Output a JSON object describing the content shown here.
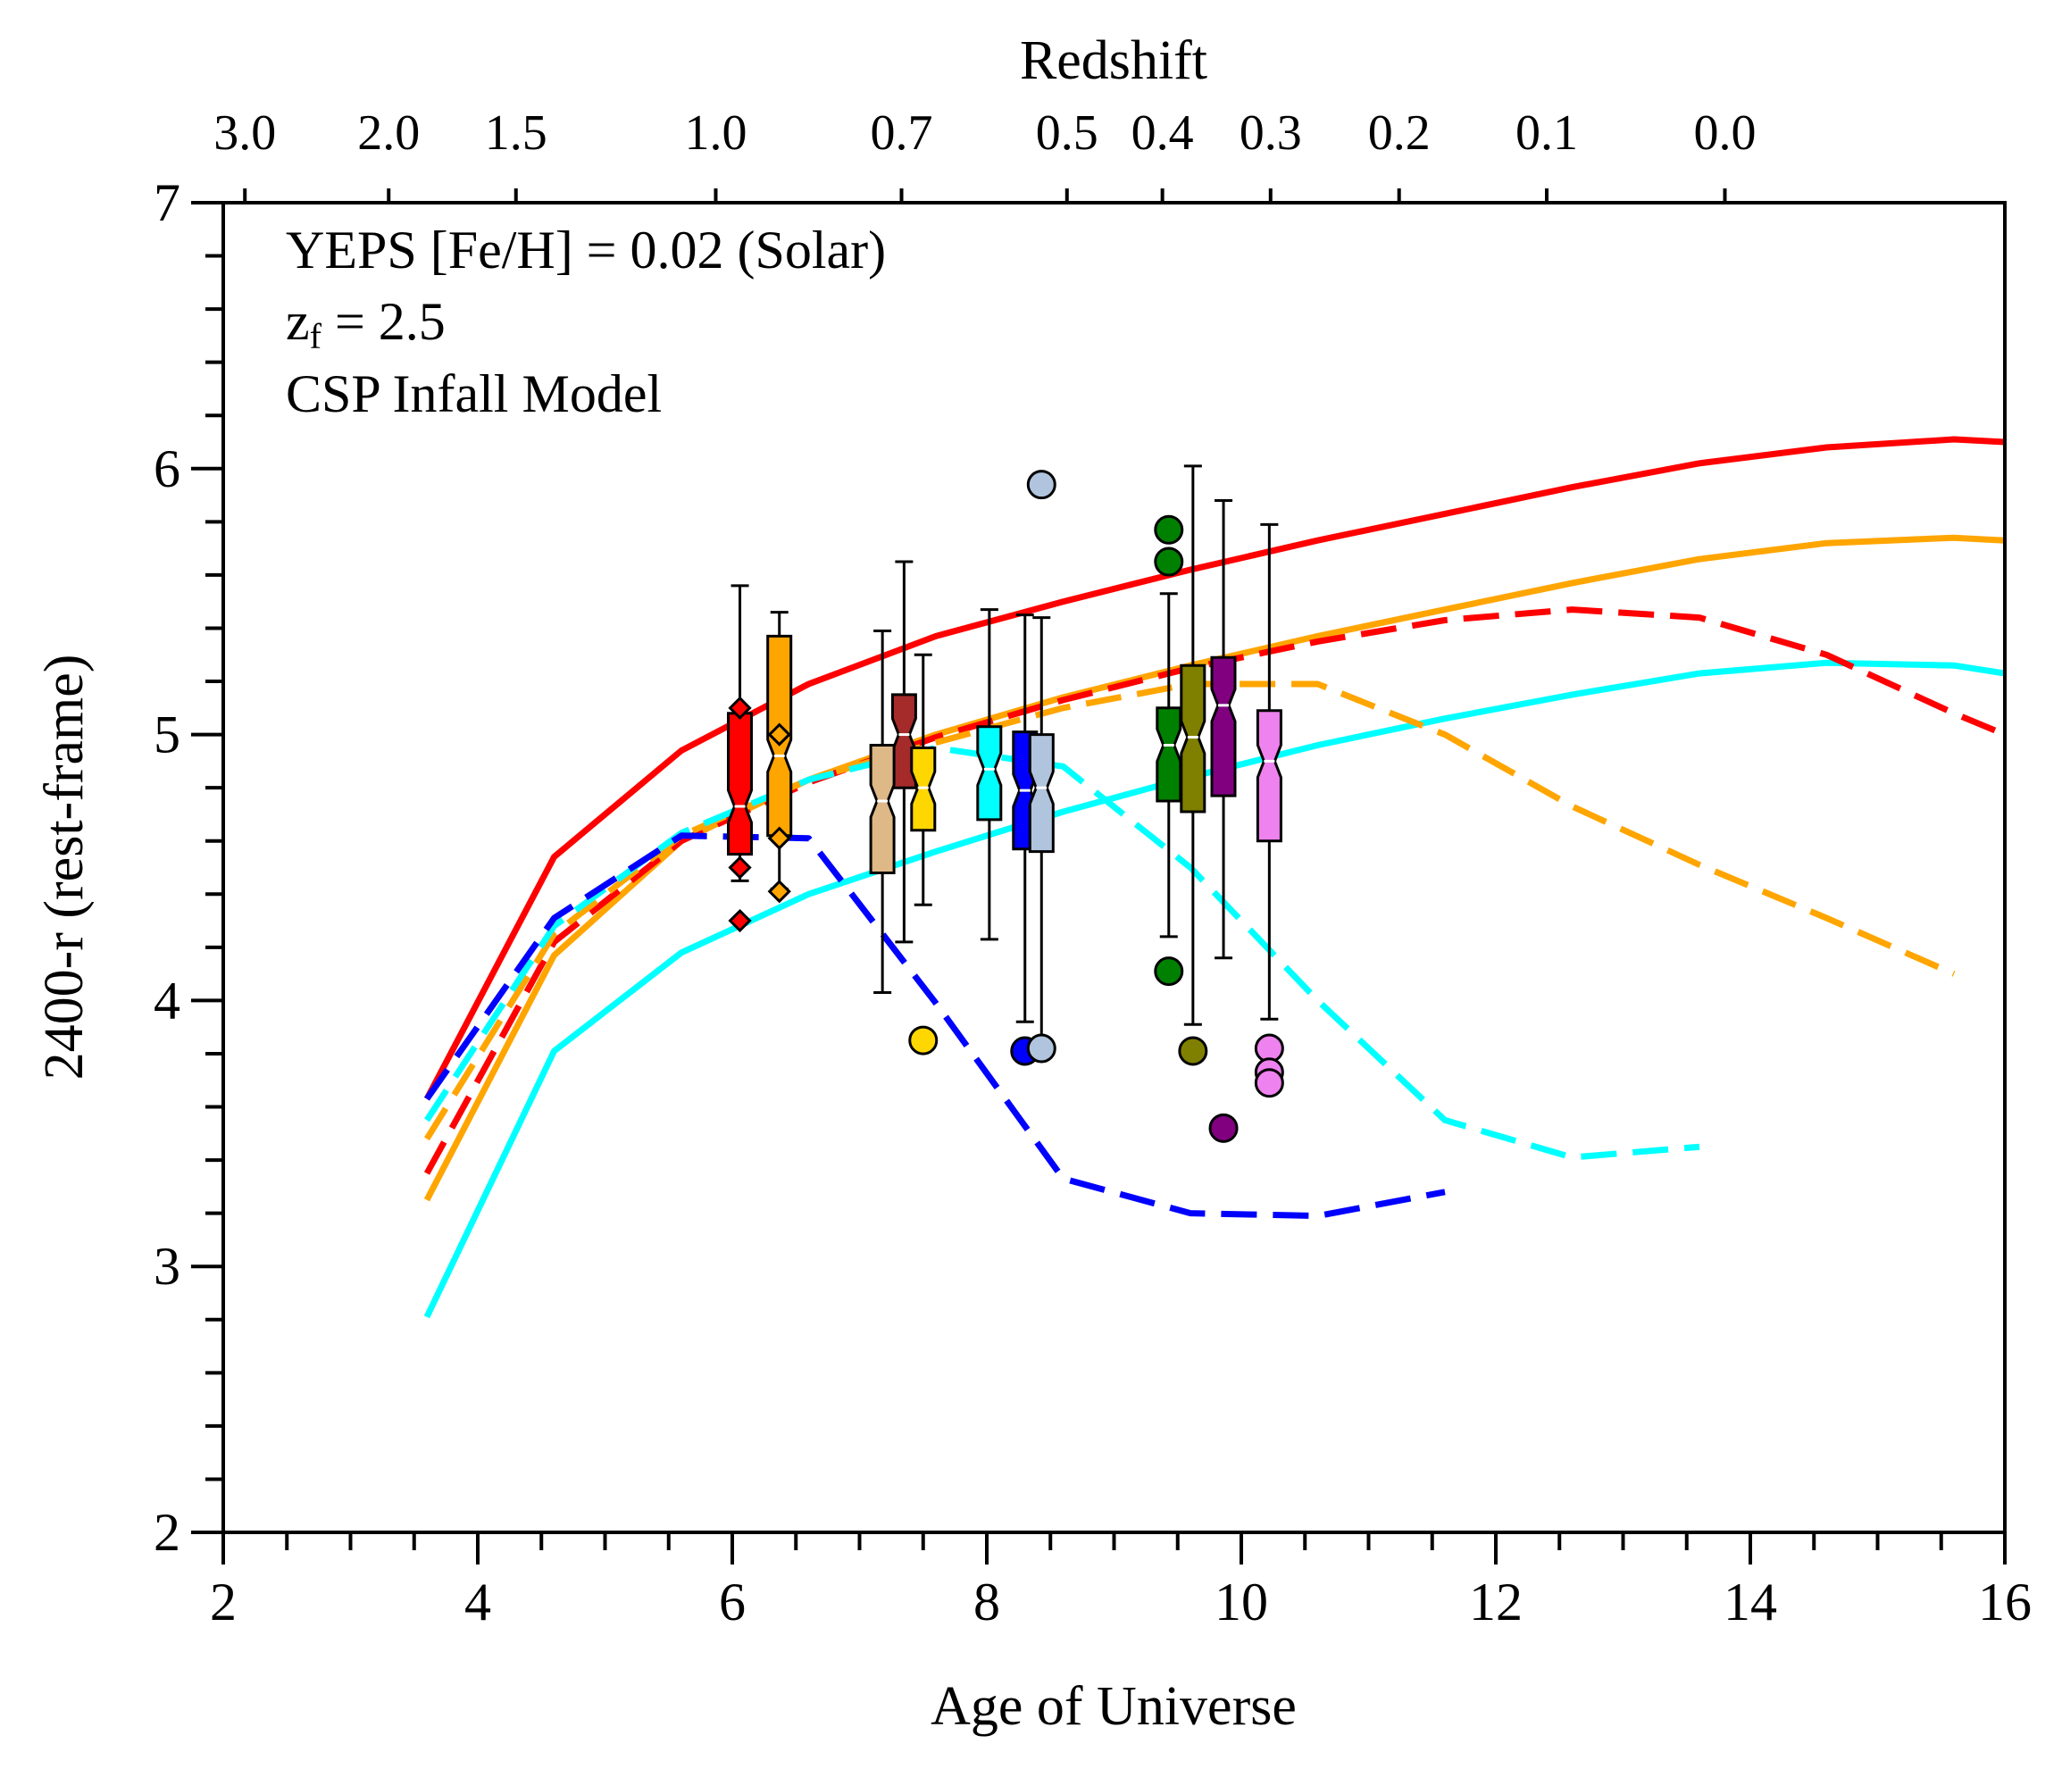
{
  "chart_data": {
    "type": "line",
    "title": "",
    "xlabel": "Age of Universe",
    "ylabel": "2400-r (rest-frame)",
    "top_axis_label": "Redshift",
    "xlim": [
      2,
      16
    ],
    "ylim": [
      2,
      7
    ],
    "x_ticks": [
      2,
      4,
      6,
      8,
      10,
      12,
      14,
      16
    ],
    "y_ticks": [
      2,
      3,
      4,
      5,
      6,
      7
    ],
    "x_tick_labels": [
      "2",
      "4",
      "6",
      "8",
      "10",
      "12",
      "14",
      "16"
    ],
    "y_tick_labels": [
      "2",
      "3",
      "4",
      "5",
      "6",
      "7"
    ],
    "top_ticks": [
      {
        "label": "3.0",
        "age": 2.17
      },
      {
        "label": "2.0",
        "age": 3.3
      },
      {
        "label": "1.5",
        "age": 4.3
      },
      {
        "label": "1.0",
        "age": 5.87
      },
      {
        "label": "0.7",
        "age": 7.33
      },
      {
        "label": "0.5",
        "age": 8.63
      },
      {
        "label": "0.4",
        "age": 9.38
      },
      {
        "label": "0.3",
        "age": 10.23
      },
      {
        "label": "0.2",
        "age": 11.24
      },
      {
        "label": "0.1",
        "age": 12.4
      },
      {
        "label": "0.0",
        "age": 13.8
      }
    ],
    "annotations": {
      "line1": "YEPS [Fe/H] = 0.02 (Solar)",
      "line2_base": "z",
      "line2_sub": "f",
      "line2_rest": " = 2.5",
      "line3": "CSP Infall Model"
    },
    "series": [
      {
        "name": "red-solid",
        "color": "#ff0000",
        "dash": "solid",
        "x": [
          3.6,
          4.6,
          5.6,
          6.6,
          7.6,
          8.6,
          9.6,
          10.6,
          11.6,
          12.6,
          13.6,
          14.6,
          15.6,
          16.0
        ],
        "y": [
          3.63,
          4.54,
          4.94,
          5.19,
          5.37,
          5.5,
          5.62,
          5.73,
          5.83,
          5.93,
          6.02,
          6.08,
          6.11,
          6.1
        ]
      },
      {
        "name": "orange-solid",
        "color": "#ffa500",
        "dash": "solid",
        "x": [
          3.6,
          4.6,
          5.6,
          6.6,
          7.6,
          8.6,
          9.6,
          10.6,
          11.6,
          12.6,
          13.6,
          14.6,
          15.6,
          16.0
        ],
        "y": [
          3.25,
          4.17,
          4.6,
          4.83,
          5.0,
          5.14,
          5.26,
          5.37,
          5.47,
          5.57,
          5.66,
          5.72,
          5.74,
          5.73
        ]
      },
      {
        "name": "cyan-solid",
        "color": "#00ffff",
        "dash": "solid",
        "x": [
          3.6,
          4.6,
          5.6,
          6.6,
          7.6,
          8.6,
          9.6,
          10.6,
          11.6,
          12.6,
          13.6,
          14.6,
          15.6,
          16.0
        ],
        "y": [
          2.81,
          3.81,
          4.18,
          4.4,
          4.56,
          4.71,
          4.84,
          4.96,
          5.06,
          5.15,
          5.23,
          5.27,
          5.26,
          5.23
        ]
      },
      {
        "name": "red-dashed",
        "color": "#ff0000",
        "dash": "dashed",
        "x": [
          3.6,
          4.6,
          5.6,
          6.6,
          7.6,
          8.6,
          9.6,
          10.6,
          11.6,
          12.6,
          13.6,
          14.6,
          15.6,
          16.0
        ],
        "y": [
          3.35,
          4.22,
          4.6,
          4.82,
          4.99,
          5.13,
          5.25,
          5.35,
          5.43,
          5.47,
          5.44,
          5.3,
          5.08,
          5.0
        ]
      },
      {
        "name": "orange-dashed",
        "color": "#ffa500",
        "dash": "dashed",
        "x": [
          3.6,
          4.6,
          5.6,
          6.6,
          7.6,
          8.6,
          9.6,
          10.6,
          11.6,
          12.6,
          13.6,
          14.6,
          15.6
        ],
        "y": [
          3.48,
          4.25,
          4.62,
          4.83,
          4.97,
          5.1,
          5.19,
          5.19,
          5.0,
          4.73,
          4.51,
          4.31,
          4.1
        ]
      },
      {
        "name": "cyan-dashed",
        "color": "#00ffff",
        "dash": "dashed",
        "x": [
          3.6,
          4.6,
          5.6,
          6.6,
          7.6,
          8.6,
          9.6,
          10.6,
          11.6,
          12.6,
          13.6
        ],
        "y": [
          3.55,
          4.28,
          4.63,
          4.83,
          4.95,
          4.88,
          4.5,
          4.0,
          3.55,
          3.41,
          3.45
        ]
      },
      {
        "name": "blue-dashed",
        "color": "#0000ff",
        "dash": "dashed",
        "x": [
          3.6,
          4.6,
          5.6,
          6.6,
          7.6,
          8.6,
          9.6,
          10.6,
          11.6
        ],
        "y": [
          3.63,
          4.31,
          4.62,
          4.61,
          3.99,
          3.33,
          3.2,
          3.19,
          3.28
        ]
      }
    ],
    "boxes": [
      {
        "x": 6.06,
        "color": "#ff0000",
        "q1": 4.55,
        "med": 4.73,
        "q3": 5.08,
        "lo": 4.45,
        "hi": 5.56,
        "outliers": [
          5.1,
          4.5,
          4.3
        ],
        "marker": "diamond"
      },
      {
        "x": 6.37,
        "color": "#ffa500",
        "q1": 4.62,
        "med": 4.92,
        "q3": 5.37,
        "lo": 4.42,
        "hi": 5.46,
        "outliers": [
          5.0,
          4.61,
          4.41
        ],
        "marker": "diamond"
      },
      {
        "x": 7.35,
        "color": "#a52a2a",
        "q1": 4.8,
        "med": 5.0,
        "q3": 5.15,
        "lo": 4.22,
        "hi": 5.65,
        "outliers": [],
        "marker": "circle"
      },
      {
        "x": 7.18,
        "color": "#deb887",
        "q1": 4.48,
        "med": 4.75,
        "q3": 4.96,
        "lo": 4.03,
        "hi": 5.39,
        "outliers": [],
        "marker": "circle"
      },
      {
        "x": 7.5,
        "color": "#ffd700",
        "q1": 4.64,
        "med": 4.8,
        "q3": 4.95,
        "lo": 4.36,
        "hi": 5.3,
        "outliers": [
          3.85
        ],
        "marker": "circle"
      },
      {
        "x": 8.02,
        "color": "#00ffff",
        "q1": 4.68,
        "med": 4.87,
        "q3": 5.03,
        "lo": 4.23,
        "hi": 5.47,
        "outliers": [],
        "marker": "circle"
      },
      {
        "x": 8.3,
        "color": "#0000ff",
        "q1": 4.57,
        "med": 4.79,
        "q3": 5.01,
        "lo": 3.92,
        "hi": 5.45,
        "outliers": [
          3.81
        ],
        "marker": "circle"
      },
      {
        "x": 8.43,
        "color": "#b0c4de",
        "q1": 4.56,
        "med": 4.8,
        "q3": 5.0,
        "lo": 3.86,
        "hi": 5.44,
        "outliers": [
          5.94,
          3.82
        ],
        "marker": "circle"
      },
      {
        "x": 9.43,
        "color": "#008000",
        "q1": 4.75,
        "med": 4.96,
        "q3": 5.1,
        "lo": 4.24,
        "hi": 5.53,
        "outliers": [
          5.77,
          5.65,
          4.11
        ],
        "marker": "circle"
      },
      {
        "x": 9.62,
        "color": "#808000",
        "q1": 4.71,
        "med": 4.99,
        "q3": 5.26,
        "lo": 3.91,
        "hi": 6.01,
        "outliers": [
          3.81
        ],
        "marker": "circle"
      },
      {
        "x": 9.86,
        "color": "#800080",
        "q1": 4.77,
        "med": 5.11,
        "q3": 5.29,
        "lo": 4.16,
        "hi": 5.88,
        "outliers": [
          3.52
        ],
        "marker": "circle"
      },
      {
        "x": 10.22,
        "color": "#ee82ee",
        "q1": 4.6,
        "med": 4.9,
        "q3": 5.09,
        "lo": 3.93,
        "hi": 5.79,
        "outliers": [
          3.82,
          3.73,
          3.69
        ],
        "marker": "circle"
      }
    ]
  }
}
